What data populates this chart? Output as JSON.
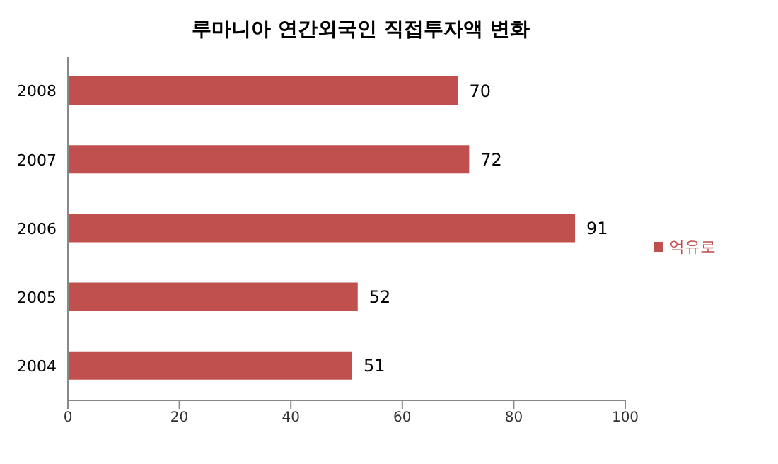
{
  "chart_data": {
    "type": "bar",
    "orientation": "horizontal",
    "title": "루마니아 연간외국인 직접투자액 변화",
    "categories": [
      "2008",
      "2007",
      "2006",
      "2005",
      "2004"
    ],
    "series": [
      {
        "name": "억유로",
        "color": "#c0504d",
        "values": [
          70,
          72,
          91,
          52,
          51
        ]
      }
    ],
    "xlim": [
      0,
      100
    ],
    "xticks": [
      0,
      20,
      40,
      60,
      80,
      100
    ],
    "data_labels": true,
    "legend": "right",
    "grid": false
  }
}
